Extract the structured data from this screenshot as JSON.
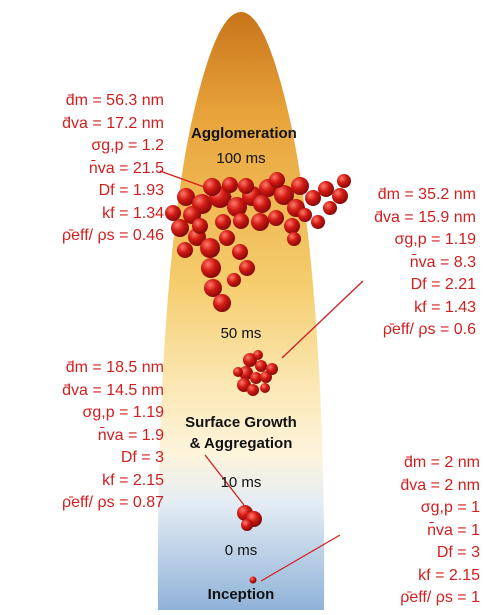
{
  "colors": {
    "flame_top": "#c8741a",
    "flame_mid": "#f5cc6c",
    "flame_pale": "#fdf4dc",
    "flame_bottom": "#8fb2d8",
    "label_red": "#d11f1f",
    "particle": "#c41616"
  },
  "stages": {
    "agglomeration": {
      "title": "Agglomeration",
      "time": "100 ms"
    },
    "mid": {
      "time": "50 ms"
    },
    "surface_growth": {
      "title_line1": "Surface Growth",
      "title_line2": "& Aggregation",
      "time": "10 ms"
    },
    "inception": {
      "title": "Inception",
      "time": "0 ms"
    }
  },
  "labels": {
    "t100": {
      "dm": "d̄m = 56.3 nm",
      "dva": "d̄va = 17.2 nm",
      "sigma": "σg,p = 1.2",
      "nva": "n̄va = 21.5",
      "df": "Df = 1.93",
      "kf": "kf = 1.34",
      "rho": "ρ̄eff/ ρs = 0.46"
    },
    "t50": {
      "dm": "d̄m = 35.2 nm",
      "dva": "d̄va = 15.9 nm",
      "sigma": "σg,p = 1.19",
      "nva": "n̄va = 8.3",
      "df": "Df = 2.21",
      "kf": "kf = 1.43",
      "rho": "ρ̄eff/ ρs = 0.6"
    },
    "t10": {
      "dm": "d̄m = 18.5 nm",
      "dva": "d̄va = 14.5 nm",
      "sigma": "σg,p = 1.19",
      "nva": "n̄va = 1.9",
      "df": "Df = 3",
      "kf": "kf = 2.15",
      "rho": "ρ̄eff/ ρs = 0.87"
    },
    "t0": {
      "dm": "d̄m = 2 nm",
      "dva": "d̄va = 2 nm",
      "sigma": "σg,p = 1",
      "nva": "n̄va = 1",
      "df": "Df = 3",
      "kf": "kf = 2.15",
      "rho": "ρ̄eff/ ρs = 1"
    }
  }
}
